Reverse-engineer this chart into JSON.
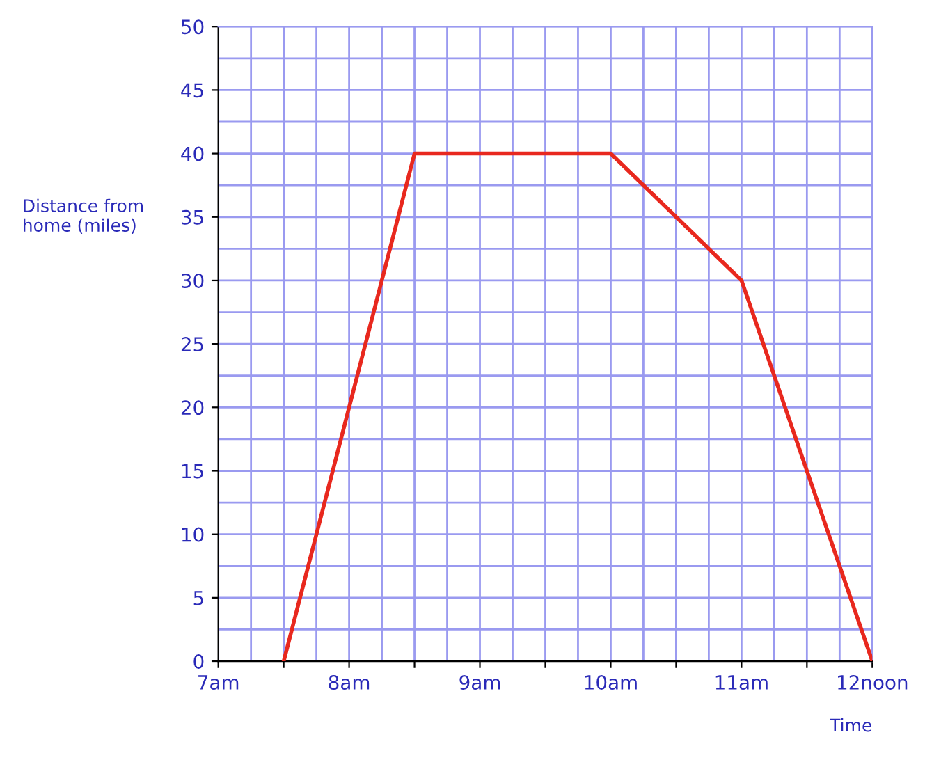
{
  "chart_data": {
    "type": "line",
    "xlabel": "Time",
    "ylabel": "Distance from\nhome (miles)",
    "x": [
      7.5,
      8.5,
      10,
      11,
      12
    ],
    "series": [
      {
        "color": "#e8281e",
        "values": [
          0,
          40,
          40,
          30,
          0
        ]
      }
    ],
    "xlim": [
      7,
      12
    ],
    "xticks": [
      {
        "value": 7,
        "label": "7am"
      },
      {
        "value": 7.5,
        "label": null
      },
      {
        "value": 8,
        "label": "8am"
      },
      {
        "value": 8.5,
        "label": null
      },
      {
        "value": 9,
        "label": "9am"
      },
      {
        "value": 9.5,
        "label": null
      },
      {
        "value": 10,
        "label": "10am"
      },
      {
        "value": 10.5,
        "label": null
      },
      {
        "value": 11,
        "label": "11am"
      },
      {
        "value": 11.5,
        "label": null
      },
      {
        "value": 12,
        "label": "12noon"
      }
    ],
    "ylim": [
      0,
      50
    ],
    "yticks": [
      0,
      5,
      10,
      15,
      20,
      25,
      30,
      35,
      40,
      45,
      50
    ],
    "grid": true,
    "marker": "none",
    "line_style": "solid"
  }
}
